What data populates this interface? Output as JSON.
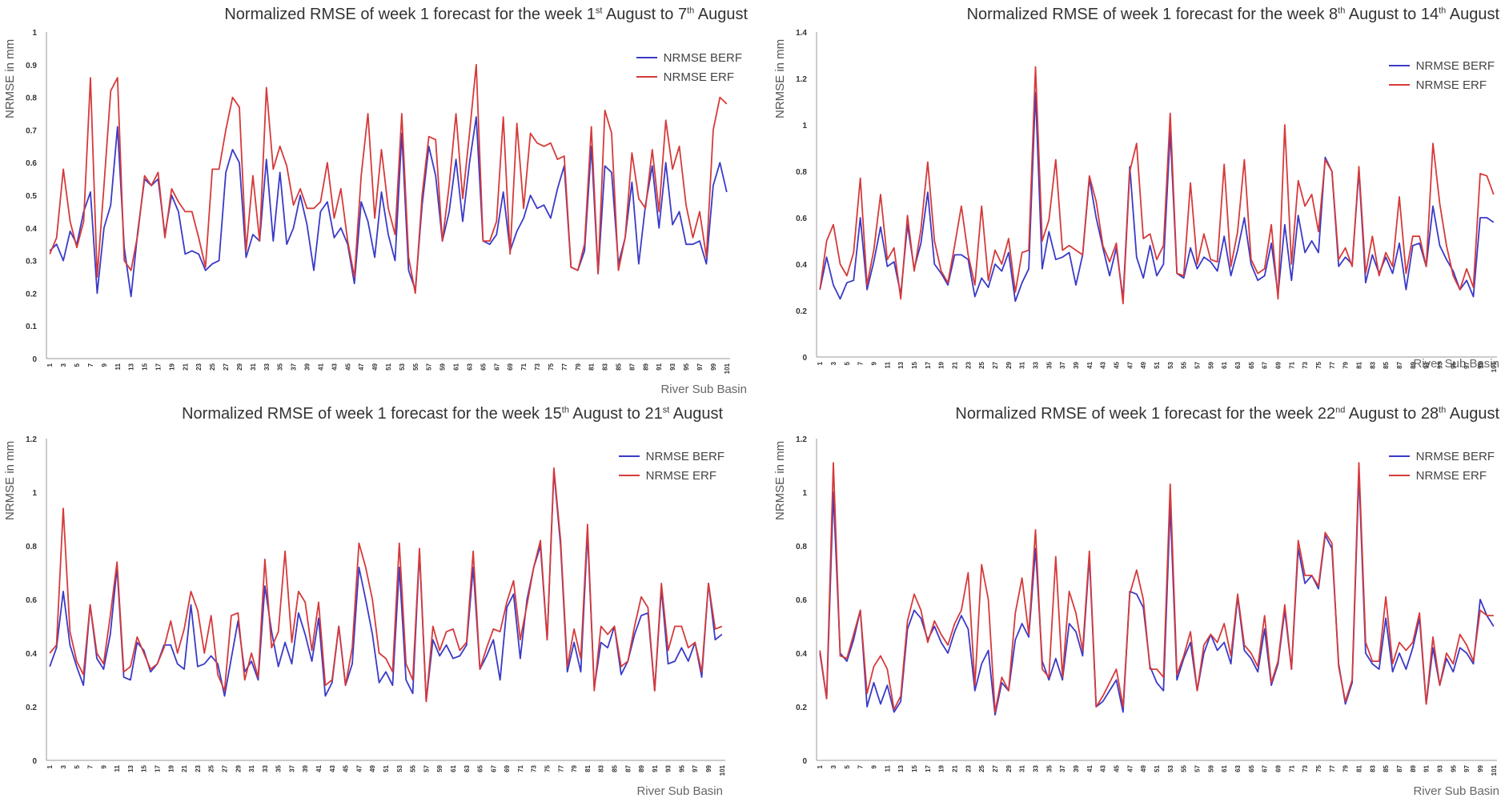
{
  "colors": {
    "berf": "#3a3ac8",
    "erf": "#d63a3a",
    "axis": "#999999",
    "text": "#444444"
  },
  "x_tick_labels": [
    "1",
    "3",
    "5",
    "7",
    "9",
    "11",
    "13",
    "15",
    "17",
    "19",
    "21",
    "23",
    "25",
    "27",
    "29",
    "31",
    "33",
    "35",
    "37",
    "39",
    "41",
    "43",
    "45",
    "47",
    "49",
    "51",
    "53",
    "55",
    "57",
    "59",
    "61",
    "63",
    "65",
    "67",
    "69",
    "71",
    "73",
    "75",
    "77",
    "79",
    "81",
    "83",
    "85",
    "87",
    "89",
    "91",
    "93",
    "95",
    "97",
    "99",
    "101"
  ],
  "chart_data": [
    {
      "type": "line",
      "title": {
        "prefix": "Normalized RMSE of week 1 forecast for the week 1",
        "sup1": "st",
        "middle": " August to 7",
        "sup2": "th",
        "suffix": " August"
      },
      "xlabel": "River Sub Basin",
      "ylabel": "NRMSE in mm",
      "ylim": [
        0,
        1
      ],
      "yticks": [
        "0",
        "0.1",
        "0.2",
        "0.3",
        "0.4",
        "0.5",
        "0.6",
        "0.7",
        "0.8",
        "0.9",
        "1"
      ],
      "legend": {
        "position": "top-right",
        "entries": [
          "NRMSE BERF",
          "NRMSE ERF"
        ]
      },
      "series": [
        {
          "name": "NRMSE BERF",
          "values": [
            0.33,
            0.35,
            0.3,
            0.39,
            0.35,
            0.45,
            0.51,
            0.2,
            0.4,
            0.47,
            0.71,
            0.34,
            0.19,
            0.39,
            0.55,
            0.53,
            0.55,
            0.38,
            0.5,
            0.45,
            0.32,
            0.33,
            0.32,
            0.27,
            0.29,
            0.3,
            0.57,
            0.64,
            0.6,
            0.31,
            0.38,
            0.36,
            0.61,
            0.36,
            0.57,
            0.35,
            0.4,
            0.5,
            0.41,
            0.27,
            0.45,
            0.48,
            0.37,
            0.4,
            0.35,
            0.23,
            0.48,
            0.42,
            0.31,
            0.51,
            0.38,
            0.3,
            0.69,
            0.27,
            0.21,
            0.47,
            0.65,
            0.56,
            0.36,
            0.45,
            0.61,
            0.42,
            0.6,
            0.74,
            0.36,
            0.35,
            0.38,
            0.51,
            0.33,
            0.39,
            0.43,
            0.5,
            0.46,
            0.47,
            0.43,
            0.52,
            0.59,
            0.28,
            0.27,
            0.33,
            0.65,
            0.26,
            0.59,
            0.57,
            0.29,
            0.37,
            0.54,
            0.29,
            0.47,
            0.59,
            0.4,
            0.6,
            0.41,
            0.45,
            0.35,
            0.35,
            0.36,
            0.29,
            0.53,
            0.6,
            0.51
          ]
        },
        {
          "name": "NRMSE ERF",
          "values": [
            0.32,
            0.37,
            0.58,
            0.42,
            0.34,
            0.42,
            0.86,
            0.25,
            0.53,
            0.82,
            0.86,
            0.3,
            0.27,
            0.38,
            0.56,
            0.53,
            0.57,
            0.37,
            0.52,
            0.48,
            0.45,
            0.45,
            0.37,
            0.28,
            0.58,
            0.58,
            0.7,
            0.8,
            0.77,
            0.33,
            0.56,
            0.36,
            0.83,
            0.58,
            0.65,
            0.59,
            0.47,
            0.52,
            0.46,
            0.46,
            0.48,
            0.6,
            0.43,
            0.52,
            0.36,
            0.25,
            0.56,
            0.75,
            0.43,
            0.64,
            0.46,
            0.38,
            0.75,
            0.31,
            0.2,
            0.5,
            0.68,
            0.67,
            0.36,
            0.53,
            0.75,
            0.49,
            0.69,
            0.9,
            0.36,
            0.36,
            0.42,
            0.74,
            0.32,
            0.72,
            0.46,
            0.69,
            0.66,
            0.65,
            0.66,
            0.61,
            0.62,
            0.28,
            0.27,
            0.35,
            0.71,
            0.26,
            0.76,
            0.69,
            0.27,
            0.37,
            0.63,
            0.49,
            0.46,
            0.64,
            0.45,
            0.73,
            0.58,
            0.65,
            0.47,
            0.37,
            0.45,
            0.31,
            0.7,
            0.8,
            0.78
          ]
        }
      ]
    },
    {
      "type": "line",
      "title": {
        "prefix": "Normalized RMSE of week 1 forecast for the week 8",
        "sup1": "th",
        "middle": " August to 14",
        "sup2": "th",
        "suffix": " August"
      },
      "xlabel": "River Sub Basin",
      "ylabel": "NRMSE in mm",
      "ylim": [
        0,
        1.4
      ],
      "yticks": [
        "0",
        "0.2",
        "0.4",
        "0.6",
        "0.8",
        "1",
        "1.2",
        "1.4"
      ],
      "legend": {
        "position": "top-right",
        "entries": [
          "NRMSE BERF",
          "NRMSE ERF"
        ]
      },
      "series": [
        {
          "name": "NRMSE BERF",
          "values": [
            0.29,
            0.43,
            0.31,
            0.25,
            0.32,
            0.33,
            0.6,
            0.29,
            0.41,
            0.56,
            0.39,
            0.41,
            0.27,
            0.57,
            0.38,
            0.49,
            0.71,
            0.4,
            0.36,
            0.31,
            0.44,
            0.44,
            0.42,
            0.26,
            0.34,
            0.3,
            0.4,
            0.37,
            0.45,
            0.24,
            0.32,
            0.38,
            1.14,
            0.38,
            0.54,
            0.42,
            0.43,
            0.45,
            0.31,
            0.44,
            0.77,
            0.6,
            0.47,
            0.35,
            0.47,
            0.25,
            0.82,
            0.43,
            0.34,
            0.48,
            0.35,
            0.4,
            0.97,
            0.36,
            0.34,
            0.47,
            0.38,
            0.43,
            0.41,
            0.37,
            0.52,
            0.35,
            0.46,
            0.6,
            0.4,
            0.33,
            0.35,
            0.49,
            0.27,
            0.57,
            0.33,
            0.61,
            0.45,
            0.5,
            0.45,
            0.86,
            0.8,
            0.39,
            0.43,
            0.4,
            0.8,
            0.32,
            0.44,
            0.36,
            0.43,
            0.36,
            0.49,
            0.29,
            0.48,
            0.49,
            0.39,
            0.65,
            0.48,
            0.42,
            0.37,
            0.29,
            0.33,
            0.26,
            0.6,
            0.6,
            0.58
          ]
        },
        {
          "name": "NRMSE ERF",
          "values": [
            0.29,
            0.5,
            0.57,
            0.4,
            0.35,
            0.45,
            0.77,
            0.31,
            0.46,
            0.7,
            0.42,
            0.47,
            0.25,
            0.61,
            0.37,
            0.55,
            0.84,
            0.5,
            0.37,
            0.32,
            0.48,
            0.65,
            0.44,
            0.31,
            0.65,
            0.33,
            0.46,
            0.4,
            0.51,
            0.28,
            0.45,
            0.46,
            1.25,
            0.5,
            0.59,
            0.85,
            0.46,
            0.48,
            0.46,
            0.44,
            0.78,
            0.67,
            0.48,
            0.41,
            0.49,
            0.23,
            0.8,
            0.92,
            0.51,
            0.53,
            0.42,
            0.48,
            1.05,
            0.36,
            0.35,
            0.75,
            0.4,
            0.53,
            0.42,
            0.41,
            0.83,
            0.39,
            0.54,
            0.85,
            0.42,
            0.36,
            0.38,
            0.57,
            0.25,
            1.0,
            0.4,
            0.76,
            0.65,
            0.7,
            0.54,
            0.85,
            0.8,
            0.42,
            0.47,
            0.39,
            0.82,
            0.36,
            0.52,
            0.35,
            0.45,
            0.39,
            0.69,
            0.36,
            0.52,
            0.52,
            0.39,
            0.92,
            0.66,
            0.48,
            0.35,
            0.29,
            0.38,
            0.3,
            0.79,
            0.78,
            0.7
          ]
        }
      ]
    },
    {
      "type": "line",
      "title": {
        "prefix": "Normalized RMSE of week 1 forecast for the week 15",
        "sup1": "th",
        "middle": " August to 21",
        "sup2": "st",
        "suffix": " August"
      },
      "xlabel": "River Sub Basin",
      "ylabel": "NRMSE in mm",
      "ylim": [
        0,
        1.2
      ],
      "yticks": [
        "0",
        "0.2",
        "0.4",
        "0.6",
        "0.8",
        "1",
        "1.2"
      ],
      "legend": {
        "position": "top-right",
        "entries": [
          "NRMSE BERF",
          "NRMSE ERF"
        ]
      },
      "series": [
        {
          "name": "NRMSE BERF",
          "values": [
            0.35,
            0.42,
            0.63,
            0.43,
            0.35,
            0.28,
            0.58,
            0.38,
            0.34,
            0.47,
            0.72,
            0.31,
            0.3,
            0.44,
            0.41,
            0.33,
            0.36,
            0.43,
            0.43,
            0.36,
            0.34,
            0.58,
            0.35,
            0.36,
            0.39,
            0.36,
            0.24,
            0.38,
            0.52,
            0.33,
            0.37,
            0.3,
            0.65,
            0.48,
            0.35,
            0.44,
            0.36,
            0.55,
            0.47,
            0.37,
            0.53,
            0.24,
            0.29,
            0.5,
            0.28,
            0.36,
            0.72,
            0.6,
            0.47,
            0.29,
            0.33,
            0.28,
            0.72,
            0.3,
            0.25,
            0.78,
            0.22,
            0.45,
            0.39,
            0.43,
            0.38,
            0.39,
            0.43,
            0.72,
            0.34,
            0.39,
            0.45,
            0.3,
            0.57,
            0.62,
            0.38,
            0.6,
            0.72,
            0.8,
            0.45,
            1.08,
            0.8,
            0.33,
            0.44,
            0.33,
            0.85,
            0.27,
            0.44,
            0.42,
            0.5,
            0.32,
            0.37,
            0.47,
            0.54,
            0.55,
            0.26,
            0.64,
            0.36,
            0.37,
            0.42,
            0.37,
            0.44,
            0.31,
            0.66,
            0.45,
            0.47
          ]
        },
        {
          "name": "NRMSE ERF",
          "values": [
            0.4,
            0.43,
            0.94,
            0.48,
            0.37,
            0.32,
            0.58,
            0.4,
            0.36,
            0.54,
            0.74,
            0.33,
            0.35,
            0.46,
            0.4,
            0.34,
            0.36,
            0.42,
            0.52,
            0.4,
            0.49,
            0.63,
            0.56,
            0.4,
            0.54,
            0.32,
            0.26,
            0.54,
            0.55,
            0.3,
            0.4,
            0.31,
            0.75,
            0.42,
            0.48,
            0.78,
            0.44,
            0.63,
            0.59,
            0.41,
            0.59,
            0.28,
            0.3,
            0.5,
            0.28,
            0.42,
            0.81,
            0.72,
            0.6,
            0.4,
            0.38,
            0.33,
            0.81,
            0.36,
            0.3,
            0.79,
            0.22,
            0.5,
            0.41,
            0.48,
            0.49,
            0.41,
            0.44,
            0.78,
            0.34,
            0.42,
            0.49,
            0.48,
            0.59,
            0.67,
            0.45,
            0.58,
            0.72,
            0.82,
            0.45,
            1.09,
            0.82,
            0.35,
            0.49,
            0.38,
            0.88,
            0.26,
            0.5,
            0.47,
            0.5,
            0.35,
            0.37,
            0.5,
            0.61,
            0.57,
            0.26,
            0.66,
            0.41,
            0.5,
            0.5,
            0.42,
            0.44,
            0.33,
            0.66,
            0.49,
            0.5
          ]
        }
      ]
    },
    {
      "type": "line",
      "title": {
        "prefix": "Normalized RMSE of week 1 forecast for the week 22",
        "sup1": "nd",
        "middle": " August to 28",
        "sup2": "th",
        "suffix": " August"
      },
      "xlabel": "River Sub Basin",
      "ylabel": "NRMSE in mm",
      "ylim": [
        0,
        1.2
      ],
      "yticks": [
        "0",
        "0.2",
        "0.4",
        "0.6",
        "0.8",
        "1",
        "1.2"
      ],
      "legend": {
        "position": "top-right",
        "entries": [
          "NRMSE BERF",
          "NRMSE ERF"
        ]
      },
      "series": [
        {
          "name": "NRMSE BERF",
          "values": [
            0.4,
            0.23,
            1.0,
            0.4,
            0.37,
            0.45,
            0.56,
            0.2,
            0.29,
            0.21,
            0.28,
            0.18,
            0.22,
            0.49,
            0.56,
            0.53,
            0.45,
            0.5,
            0.44,
            0.4,
            0.48,
            0.54,
            0.49,
            0.26,
            0.36,
            0.41,
            0.17,
            0.29,
            0.26,
            0.45,
            0.51,
            0.46,
            0.79,
            0.37,
            0.3,
            0.38,
            0.3,
            0.51,
            0.48,
            0.39,
            0.76,
            0.2,
            0.22,
            0.26,
            0.3,
            0.18,
            0.63,
            0.62,
            0.57,
            0.35,
            0.29,
            0.26,
            0.95,
            0.3,
            0.38,
            0.44,
            0.26,
            0.4,
            0.47,
            0.41,
            0.44,
            0.36,
            0.61,
            0.41,
            0.38,
            0.33,
            0.49,
            0.28,
            0.36,
            0.56,
            0.34,
            0.79,
            0.66,
            0.69,
            0.64,
            0.84,
            0.79,
            0.36,
            0.21,
            0.29,
            1.07,
            0.4,
            0.36,
            0.34,
            0.53,
            0.33,
            0.4,
            0.34,
            0.42,
            0.53,
            0.21,
            0.42,
            0.28,
            0.38,
            0.33,
            0.42,
            0.4,
            0.36,
            0.6,
            0.54,
            0.5
          ]
        },
        {
          "name": "NRMSE ERF",
          "values": [
            0.41,
            0.23,
            1.11,
            0.39,
            0.38,
            0.47,
            0.56,
            0.25,
            0.35,
            0.39,
            0.34,
            0.19,
            0.24,
            0.52,
            0.62,
            0.56,
            0.44,
            0.52,
            0.47,
            0.43,
            0.51,
            0.56,
            0.7,
            0.28,
            0.73,
            0.6,
            0.18,
            0.31,
            0.26,
            0.55,
            0.68,
            0.47,
            0.86,
            0.34,
            0.31,
            0.76,
            0.31,
            0.63,
            0.55,
            0.41,
            0.78,
            0.2,
            0.24,
            0.29,
            0.34,
            0.2,
            0.62,
            0.71,
            0.6,
            0.34,
            0.34,
            0.31,
            1.03,
            0.32,
            0.39,
            0.48,
            0.26,
            0.43,
            0.47,
            0.44,
            0.51,
            0.39,
            0.62,
            0.43,
            0.4,
            0.35,
            0.54,
            0.29,
            0.37,
            0.58,
            0.34,
            0.82,
            0.69,
            0.69,
            0.65,
            0.85,
            0.81,
            0.35,
            0.22,
            0.3,
            1.11,
            0.44,
            0.37,
            0.37,
            0.61,
            0.36,
            0.44,
            0.41,
            0.44,
            0.55,
            0.21,
            0.46,
            0.28,
            0.4,
            0.36,
            0.47,
            0.43,
            0.37,
            0.56,
            0.54,
            0.54
          ]
        }
      ]
    }
  ]
}
